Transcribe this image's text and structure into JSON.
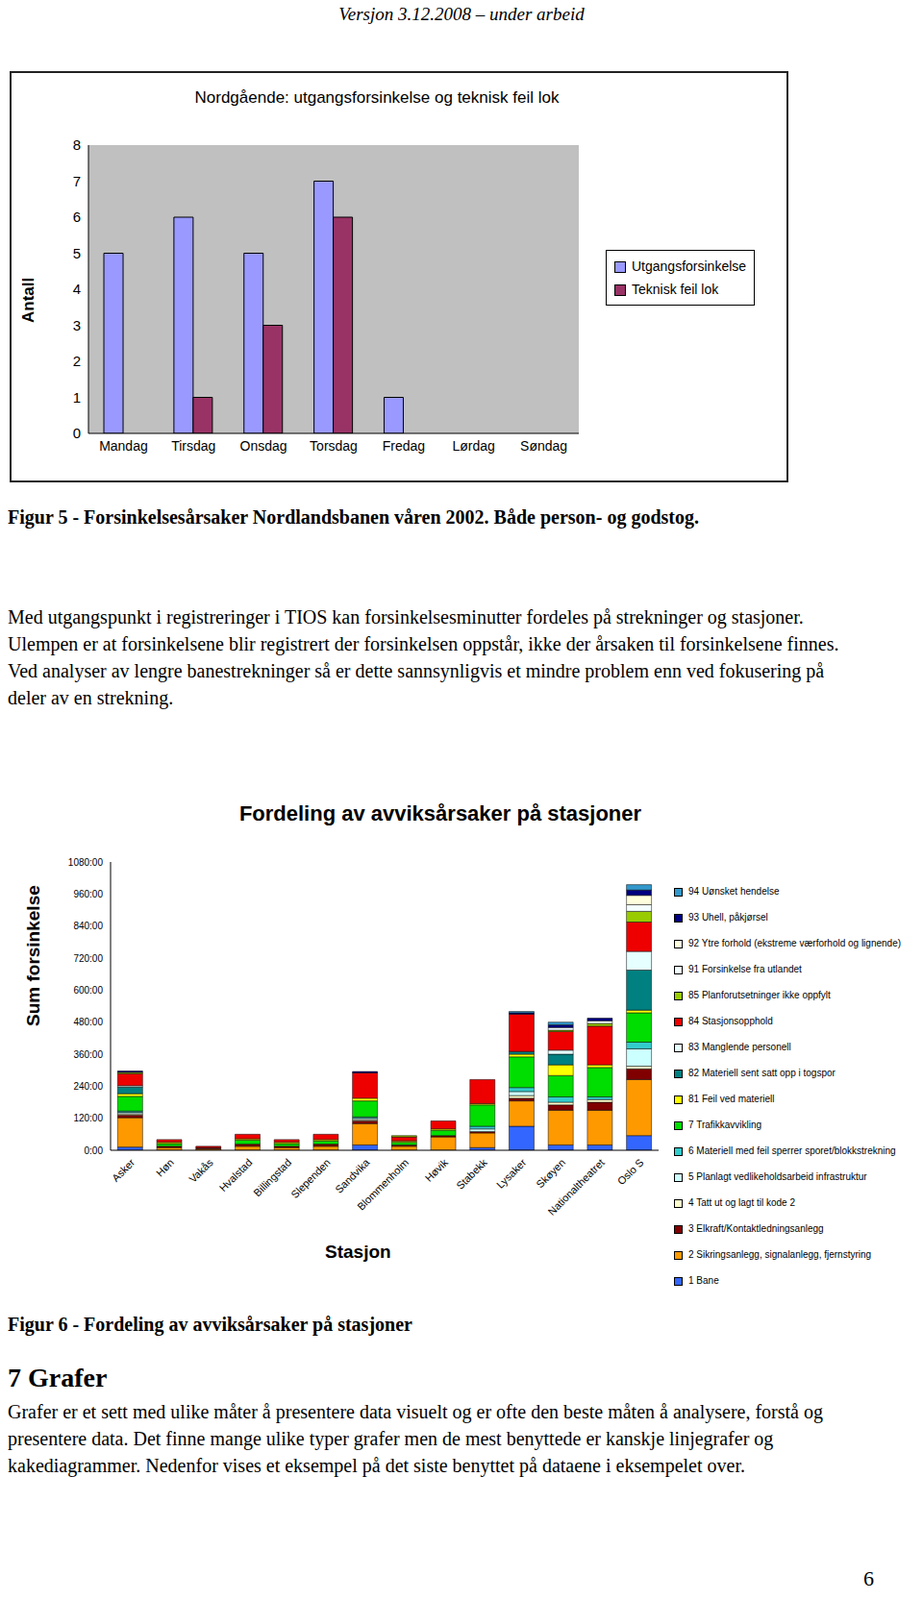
{
  "header": "Versjon 3.12.2008 – under arbeid",
  "chart_data": [
    {
      "type": "bar",
      "title": "Nordgående: utgangsforsinkelse og teknisk feil lok",
      "y_label": "Antall",
      "categories": [
        "Mandag",
        "Tirsdag",
        "Onsdag",
        "Torsdag",
        "Fredag",
        "Lørdag",
        "Søndag"
      ],
      "series": [
        {
          "name": "Utgangsforsinkelse",
          "color": "#9999ff",
          "values": [
            5,
            6,
            5,
            7,
            1,
            0,
            0
          ]
        },
        {
          "name": "Teknisk feil lok",
          "color": "#993366",
          "values": [
            0,
            1,
            3,
            6,
            0,
            0,
            0
          ]
        }
      ],
      "ylim": [
        0,
        8
      ],
      "yticks": [
        0,
        1,
        2,
        3,
        4,
        5,
        6,
        7,
        8
      ],
      "grid": false,
      "legend": "right"
    },
    {
      "type": "bar",
      "stacked": true,
      "title": "Fordeling av avviksårsaker på stasjoner",
      "x_label": "Stasjon",
      "y_label": "Sum forsinkelse",
      "categories": [
        "Asker",
        "Høn",
        "Vakås",
        "Hvalstad",
        "Billingstad",
        "Slependen",
        "Sandvika",
        "Blommenholm",
        "Høvik",
        "Stabekk",
        "Lysaker",
        "Skøyen",
        "Nationaltheatret",
        "Oslo S"
      ],
      "series": [
        {
          "name": "1 Bane",
          "color": "#3366ff",
          "values": [
            12,
            0,
            0,
            0,
            0,
            0,
            20,
            0,
            0,
            10,
            90,
            20,
            20,
            55
          ]
        },
        {
          "name": "2 Sikringsanlegg, signalanlegg, fjernstyring",
          "color": "#ff9900",
          "values": [
            110,
            10,
            5,
            15,
            10,
            15,
            80,
            15,
            50,
            55,
            95,
            130,
            130,
            210
          ]
        },
        {
          "name": "3 Elkraft/Kontaktledningsanlegg",
          "color": "#800000",
          "values": [
            10,
            5,
            5,
            8,
            5,
            8,
            10,
            5,
            5,
            5,
            10,
            20,
            30,
            40
          ]
        },
        {
          "name": "4 Tatt ut og lagt til kode 2",
          "color": "#ffffcc",
          "values": [
            5,
            0,
            0,
            0,
            0,
            0,
            5,
            0,
            0,
            0,
            10,
            10,
            10,
            10
          ]
        },
        {
          "name": "5 Planlagt vedlikeholdsarbeid infrastruktur",
          "color": "#ccffff",
          "values": [
            5,
            0,
            0,
            0,
            0,
            0,
            5,
            0,
            0,
            10,
            15,
            0,
            0,
            65
          ]
        },
        {
          "name": "6 Materiell med feil sperrer sporet/blokkstrekning",
          "color": "#33cccc",
          "values": [
            5,
            0,
            0,
            0,
            0,
            0,
            5,
            0,
            0,
            10,
            15,
            20,
            10,
            25
          ]
        },
        {
          "name": "7 Trafikkavvikling",
          "color": "#00dd00",
          "values": [
            55,
            10,
            0,
            15,
            10,
            12,
            60,
            10,
            20,
            80,
            115,
            80,
            110,
            110
          ]
        },
        {
          "name": "81 Feil ved materiell",
          "color": "#ffff00",
          "values": [
            10,
            5,
            0,
            5,
            5,
            5,
            10,
            5,
            5,
            5,
            10,
            40,
            10,
            10
          ]
        },
        {
          "name": "82 Materiell sent satt opp i togspor",
          "color": "#008080",
          "values": [
            25,
            0,
            0,
            0,
            0,
            0,
            0,
            0,
            0,
            0,
            10,
            40,
            0,
            150
          ]
        },
        {
          "name": "83 Manglende personell",
          "color": "#e6ffff",
          "values": [
            5,
            0,
            0,
            0,
            0,
            0,
            0,
            0,
            0,
            0,
            0,
            15,
            0,
            70
          ]
        },
        {
          "name": "84 Stasjonsopphold",
          "color": "#ee0000",
          "values": [
            45,
            10,
            5,
            17,
            10,
            20,
            95,
            15,
            30,
            90,
            140,
            70,
            145,
            110
          ]
        },
        {
          "name": "85 Planforutsetninger ikke oppfylt",
          "color": "#99cc00",
          "values": [
            5,
            0,
            0,
            0,
            0,
            0,
            0,
            5,
            0,
            0,
            0,
            5,
            10,
            40
          ]
        },
        {
          "name": "91 Forsinkelse fra utlandet",
          "color": "#f4ffff",
          "values": [
            0,
            0,
            0,
            0,
            0,
            0,
            0,
            0,
            0,
            0,
            0,
            10,
            10,
            25
          ]
        },
        {
          "name": "92 Ytre forhold (ekstreme værforhold og lignende)",
          "color": "#ffffdd",
          "values": [
            0,
            0,
            0,
            0,
            0,
            0,
            0,
            0,
            0,
            0,
            0,
            0,
            0,
            35
          ]
        },
        {
          "name": "93 Uhell, påkjørsel",
          "color": "#000080",
          "values": [
            5,
            0,
            0,
            0,
            0,
            0,
            5,
            0,
            0,
            0,
            5,
            10,
            10,
            20
          ]
        },
        {
          "name": "94 Uønsket hendelse",
          "color": "#3399cc",
          "values": [
            0,
            0,
            0,
            0,
            0,
            0,
            0,
            0,
            0,
            0,
            5,
            10,
            0,
            20
          ]
        }
      ],
      "ylim": [
        0,
        1080
      ],
      "yticks": [
        {
          "value": 0,
          "label": "0:00"
        },
        {
          "value": 120,
          "label": "120:00"
        },
        {
          "value": 240,
          "label": "240:00"
        },
        {
          "value": 360,
          "label": "360:00"
        },
        {
          "value": 480,
          "label": "480:00"
        },
        {
          "value": 600,
          "label": "600:00"
        },
        {
          "value": 720,
          "label": "720:00"
        },
        {
          "value": 840,
          "label": "840:00"
        },
        {
          "value": 960,
          "label": "960:00"
        },
        {
          "value": 1080,
          "label": "1080:00"
        }
      ],
      "grid": false,
      "legend": "right"
    }
  ],
  "captions": [
    "Figur 5 - Forsinkelsesårsaker Nordlandsbanen våren 2002. Både person- og godstog.",
    "Figur 6 - Fordeling av avviksårsaker på stasjoner"
  ],
  "paragraphs": [
    "Med utgangspunkt i registreringer i TIOS kan forsinkelsesminutter fordeles på strekninger og stasjoner. Ulempen er at forsinkelsene blir registrert der forsinkelsen oppstår, ikke der årsaken til forsinkelsene finnes. Ved analyser av lengre banestrekninger så er dette sannsynligvis et mindre problem enn ved fokusering på deler av en strekning.",
    "Grafer er et sett med ulike måter å presentere data visuelt og er ofte den beste måten å analysere, forstå og presentere data. Det finne mange ulike typer grafer men de mest benyttede er kanskje linjegrafer og kakediagrammer. Nedenfor vises et eksempel på det siste benyttet på dataene i eksempelet over."
  ],
  "heading": "7 Grafer",
  "page_number": "6"
}
